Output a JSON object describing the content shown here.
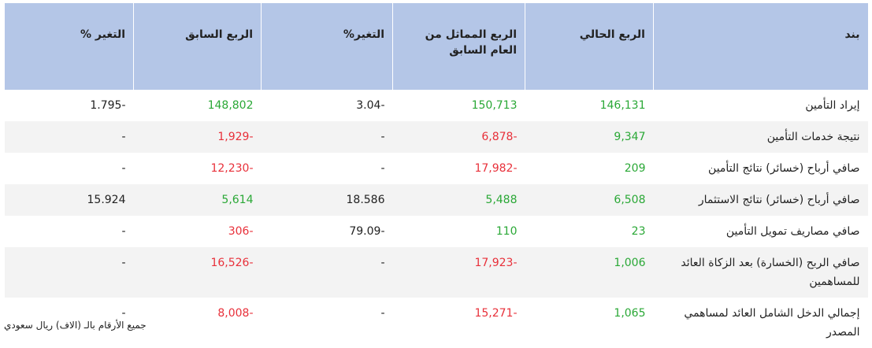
{
  "table": {
    "header": [
      "بند",
      "الربع الحالي",
      "الربع المماثل من العام السابق",
      "التغير%",
      "الربع السابق",
      "التغير %"
    ],
    "rows": [
      {
        "cells": [
          "إيراد التأمين",
          "146,131",
          "150,713",
          "3.04-",
          "148,802",
          "1.795-"
        ],
        "colors": [
          "#222222",
          "#2aa836",
          "#2aa836",
          "#222222",
          "#2aa836",
          "#222222"
        ]
      },
      {
        "cells": [
          "نتيجة خدمات التأمين",
          "9,347",
          "6,878-",
          "-",
          "1,929-",
          "-"
        ],
        "colors": [
          "#222222",
          "#2aa836",
          "#e8303a",
          "#222222",
          "#e8303a",
          "#222222"
        ]
      },
      {
        "cells": [
          "صافي أرباح (خسائر) نتائج التأمين",
          "209",
          "17,982-",
          "-",
          "12,230-",
          "-"
        ],
        "colors": [
          "#222222",
          "#2aa836",
          "#e8303a",
          "#222222",
          "#e8303a",
          "#222222"
        ]
      },
      {
        "cells": [
          "صافي أرباح (خسائر) نتائج الاستثمار",
          "6,508",
          "5,488",
          "18.586",
          "5,614",
          "15.924"
        ],
        "colors": [
          "#222222",
          "#2aa836",
          "#2aa836",
          "#222222",
          "#2aa836",
          "#222222"
        ]
      },
      {
        "cells": [
          "صافي مصاريف تمويل التأمين",
          "23",
          "110",
          "79.09-",
          "306-",
          "-"
        ],
        "colors": [
          "#222222",
          "#2aa836",
          "#2aa836",
          "#222222",
          "#e8303a",
          "#222222"
        ]
      },
      {
        "cells": [
          "صافي الربح (الخسارة) بعد الزكاة العائد للمساهمين",
          "1,006",
          "17,923-",
          "-",
          "16,526-",
          "-"
        ],
        "colors": [
          "#222222",
          "#2aa836",
          "#e8303a",
          "#222222",
          "#e8303a",
          "#222222"
        ]
      },
      {
        "cells": [
          "إجمالي الدخل الشامل العائد لمساهمي المصدر",
          "1,065",
          "15,271-",
          "-",
          "8,008-",
          "-"
        ],
        "colors": [
          "#222222",
          "#2aa836",
          "#e8303a",
          "#222222",
          "#e8303a",
          "#222222"
        ]
      }
    ]
  },
  "footnote": "جميع الأرقام بالـ (الاف) ريال سعودي"
}
